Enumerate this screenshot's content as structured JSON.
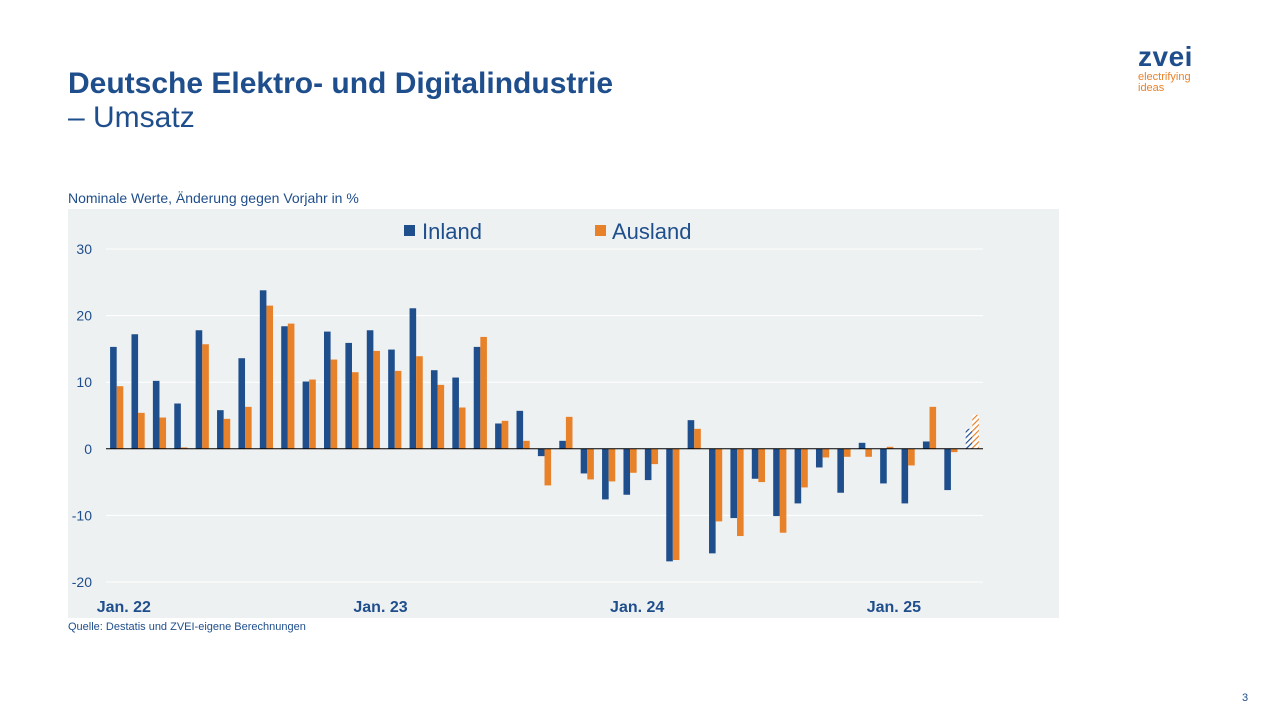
{
  "slide": {
    "title": "Deutsche Elektro- und Digitalindustrie",
    "subtitle": "– Umsatz",
    "page_number": "3"
  },
  "logo": {
    "word": "zvei",
    "tagline_1": "electrifying",
    "tagline_2": "ideas"
  },
  "chart_note": "Nominale Werte, Änderung gegen Vorjahr in %",
  "source": "Quelle: Destatis und ZVEI-eigene Berechnungen",
  "colors": {
    "inland": "#1f4e8c",
    "ausland": "#e8822a",
    "plot_bg": "#eef1f2",
    "text": "#1f4e8c"
  },
  "chart_data": {
    "type": "bar",
    "x_tick_labels": [
      "Jan. 22",
      "Jan. 23",
      "Jan. 24",
      "Jan. 25"
    ],
    "y_ticks": [
      "30",
      "20",
      "10",
      "0",
      "-10",
      "-20"
    ],
    "ylim": [
      -20,
      30
    ],
    "grid": true,
    "legend_position": "top-center",
    "provisional_last_month": true,
    "series": [
      {
        "name": "Inland",
        "color": "#1f4e8c",
        "values": [
          15.3,
          17.2,
          10.2,
          6.8,
          17.8,
          5.8,
          13.6,
          23.8,
          18.4,
          10.1,
          17.6,
          15.9,
          17.8,
          14.9,
          21.1,
          11.8,
          10.7,
          15.3,
          3.8,
          5.7,
          -1.1,
          1.2,
          -3.7,
          -7.6,
          -6.9,
          -4.7,
          -16.9,
          4.3,
          -15.7,
          -10.4,
          -4.5,
          -10.1,
          -8.2,
          -2.8,
          -6.6,
          0.9,
          -5.2,
          -8.2,
          1.1,
          -6.2,
          3.0
        ]
      },
      {
        "name": "Ausland",
        "color": "#e8822a",
        "values": [
          9.4,
          5.4,
          4.7,
          0.2,
          15.7,
          4.5,
          6.3,
          21.5,
          18.8,
          10.4,
          13.4,
          11.5,
          14.7,
          11.7,
          13.9,
          9.6,
          6.2,
          16.8,
          4.2,
          1.2,
          -5.5,
          4.8,
          -4.6,
          -4.9,
          -3.6,
          -2.3,
          -16.7,
          3.0,
          -10.9,
          -13.1,
          -5.0,
          -12.6,
          -5.8,
          -1.3,
          -1.2,
          -1.2,
          0.3,
          -2.5,
          6.3,
          -0.5,
          5.1
        ]
      }
    ]
  }
}
